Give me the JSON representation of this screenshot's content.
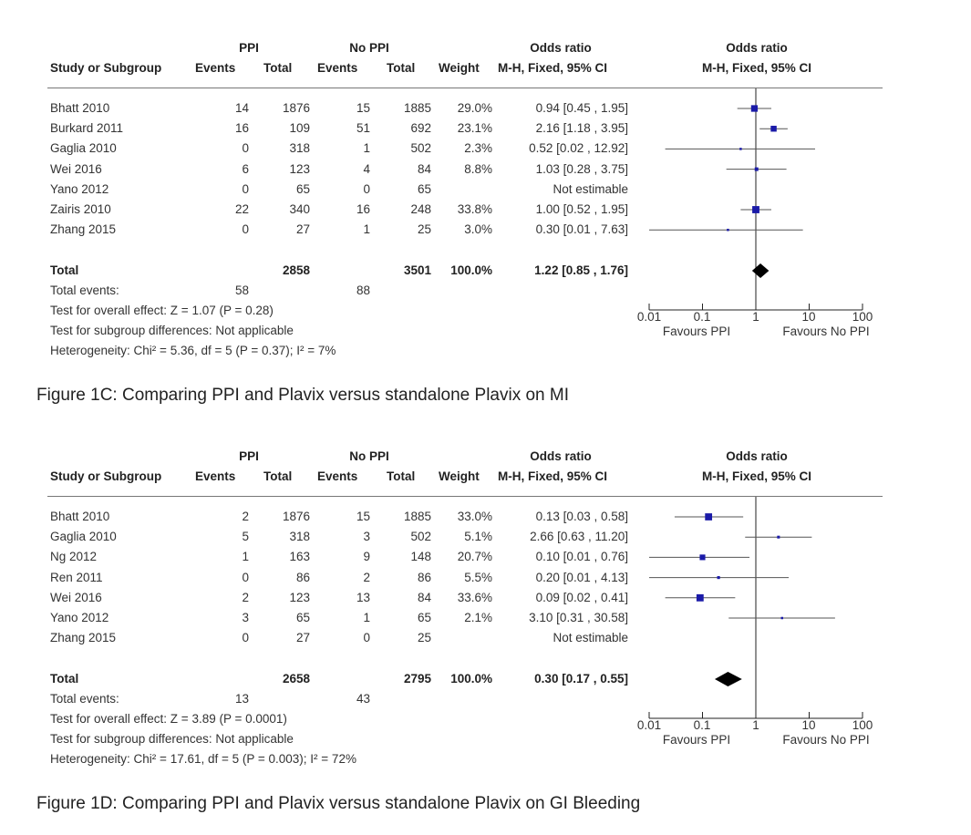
{
  "headers": {
    "group1": "PPI",
    "group2": "No PPI",
    "or_group": "Odds ratio",
    "study": "Study or Subgroup",
    "events": "Events",
    "total": "Total",
    "weight": "Weight",
    "method_ci": "M-H, Fixed, 95% CI",
    "plot_title": "Odds ratio",
    "plot_method": "M-H, Fixed, 95% CI"
  },
  "axis": {
    "ticks": [
      "0.01",
      "0.1",
      "1",
      "10",
      "100"
    ],
    "favours_left": "Favours PPI",
    "favours_right": "Favours No PPI"
  },
  "colors": {
    "study_marker": "#1a1aa8",
    "diamond": "#000000",
    "line": "#555555"
  },
  "chart_data": [
    {
      "type": "forest",
      "caption": "Figure 1C: Comparing PPI and Plavix versus standalone Plavix on MI",
      "x_scale": "log",
      "xlim": [
        0.01,
        100
      ],
      "studies": [
        {
          "name": "Bhatt 2010",
          "e1": "14",
          "t1": "1876",
          "e2": "15",
          "t2": "1885",
          "weight": "29.0%",
          "ci_text": "0.94 [0.45 , 1.95]",
          "or": 0.94,
          "lo": 0.45,
          "hi": 1.95,
          "w": 29.0
        },
        {
          "name": "Burkard 2011",
          "e1": "16",
          "t1": "109",
          "e2": "51",
          "t2": "692",
          "weight": "23.1%",
          "ci_text": "2.16 [1.18 , 3.95]",
          "or": 2.16,
          "lo": 1.18,
          "hi": 3.95,
          "w": 23.1
        },
        {
          "name": "Gaglia 2010",
          "e1": "0",
          "t1": "318",
          "e2": "1",
          "t2": "502",
          "weight": "2.3%",
          "ci_text": "0.52 [0.02 , 12.92]",
          "or": 0.52,
          "lo": 0.02,
          "hi": 12.92,
          "w": 2.3
        },
        {
          "name": "Wei 2016",
          "e1": "6",
          "t1": "123",
          "e2": "4",
          "t2": "84",
          "weight": "8.8%",
          "ci_text": "1.03 [0.28 , 3.75]",
          "or": 1.03,
          "lo": 0.28,
          "hi": 3.75,
          "w": 8.8
        },
        {
          "name": "Yano 2012",
          "e1": "0",
          "t1": "65",
          "e2": "0",
          "t2": "65",
          "weight": "",
          "ci_text": "Not estimable",
          "or": null,
          "lo": null,
          "hi": null,
          "w": 0
        },
        {
          "name": "Zairis 2010",
          "e1": "22",
          "t1": "340",
          "e2": "16",
          "t2": "248",
          "weight": "33.8%",
          "ci_text": "1.00 [0.52 , 1.95]",
          "or": 1.0,
          "lo": 0.52,
          "hi": 1.95,
          "w": 33.8
        },
        {
          "name": "Zhang 2015",
          "e1": "0",
          "t1": "27",
          "e2": "1",
          "t2": "25",
          "weight": "3.0%",
          "ci_text": "0.30 [0.01 , 7.63]",
          "or": 0.3,
          "lo": 0.01,
          "hi": 7.63,
          "w": 3.0
        }
      ],
      "total": {
        "label": "Total",
        "t1": "2858",
        "t2": "3501",
        "weight": "100.0%",
        "ci_text": "1.22 [0.85 , 1.76]",
        "or": 1.22,
        "lo": 0.85,
        "hi": 1.76
      },
      "total_events": {
        "label": "Total events:",
        "e1": "58",
        "e2": "88"
      },
      "overall_effect": "Test for overall effect: Z = 1.07 (P = 0.28)",
      "subgroup_diff": "Test for subgroup differences: Not applicable",
      "heterogeneity": "Heterogeneity: Chi² = 5.36, df = 5 (P = 0.37); I² = 7%"
    },
    {
      "type": "forest",
      "caption": "Figure 1D: Comparing PPI and Plavix versus standalone Plavix on GI Bleeding",
      "x_scale": "log",
      "xlim": [
        0.01,
        100
      ],
      "studies": [
        {
          "name": "Bhatt 2010",
          "e1": "2",
          "t1": "1876",
          "e2": "15",
          "t2": "1885",
          "weight": "33.0%",
          "ci_text": "0.13 [0.03 , 0.58]",
          "or": 0.13,
          "lo": 0.03,
          "hi": 0.58,
          "w": 33.0
        },
        {
          "name": "Gaglia 2010",
          "e1": "5",
          "t1": "318",
          "e2": "3",
          "t2": "502",
          "weight": "5.1%",
          "ci_text": "2.66 [0.63 , 11.20]",
          "or": 2.66,
          "lo": 0.63,
          "hi": 11.2,
          "w": 5.1
        },
        {
          "name": "Ng 2012",
          "e1": "1",
          "t1": "163",
          "e2": "9",
          "t2": "148",
          "weight": "20.7%",
          "ci_text": "0.10 [0.01 , 0.76]",
          "or": 0.1,
          "lo": 0.01,
          "hi": 0.76,
          "w": 20.7
        },
        {
          "name": "Ren 2011",
          "e1": "0",
          "t1": "86",
          "e2": "2",
          "t2": "86",
          "weight": "5.5%",
          "ci_text": "0.20 [0.01 , 4.13]",
          "or": 0.2,
          "lo": 0.01,
          "hi": 4.13,
          "w": 5.5
        },
        {
          "name": "Wei 2016",
          "e1": "2",
          "t1": "123",
          "e2": "13",
          "t2": "84",
          "weight": "33.6%",
          "ci_text": "0.09 [0.02 , 0.41]",
          "or": 0.09,
          "lo": 0.02,
          "hi": 0.41,
          "w": 33.6
        },
        {
          "name": "Yano 2012",
          "e1": "3",
          "t1": "65",
          "e2": "1",
          "t2": "65",
          "weight": "2.1%",
          "ci_text": "3.10 [0.31 , 30.58]",
          "or": 3.1,
          "lo": 0.31,
          "hi": 30.58,
          "w": 2.1
        },
        {
          "name": "Zhang 2015",
          "e1": "0",
          "t1": "27",
          "e2": "0",
          "t2": "25",
          "weight": "",
          "ci_text": "Not estimable",
          "or": null,
          "lo": null,
          "hi": null,
          "w": 0
        }
      ],
      "total": {
        "label": "Total",
        "t1": "2658",
        "t2": "2795",
        "weight": "100.0%",
        "ci_text": "0.30 [0.17 , 0.55]",
        "or": 0.3,
        "lo": 0.17,
        "hi": 0.55
      },
      "total_events": {
        "label": "Total events:",
        "e1": "13",
        "e2": "43"
      },
      "overall_effect": "Test for overall effect: Z = 3.89 (P = 0.0001)",
      "subgroup_diff": "Test for subgroup differences: Not applicable",
      "heterogeneity": "Heterogeneity: Chi² = 17.61, df = 5 (P = 0.003); I² = 72%"
    }
  ]
}
